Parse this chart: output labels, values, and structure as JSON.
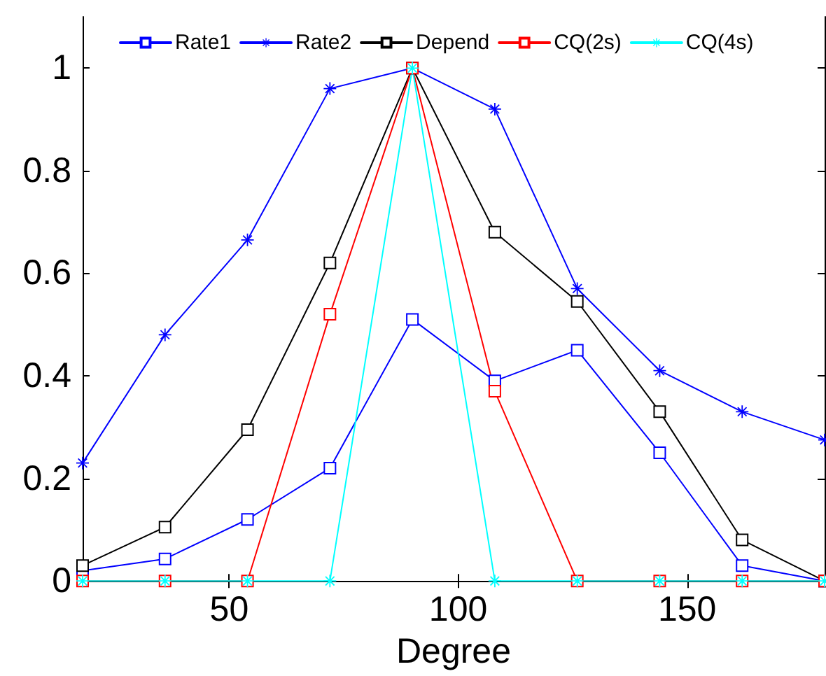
{
  "chart_data": {
    "type": "line",
    "xlabel": "Degree",
    "x": [
      18,
      36,
      54,
      72,
      90,
      108,
      126,
      144,
      162,
      180
    ],
    "series": [
      {
        "name": "Rate1",
        "color": "#0000ff",
        "marker": "square",
        "values": [
          0.02,
          0.043,
          0.12,
          0.22,
          0.51,
          0.39,
          0.45,
          0.25,
          0.03,
          0
        ]
      },
      {
        "name": "Rate2",
        "color": "#0000ff",
        "marker": "star",
        "values": [
          0.23,
          0.48,
          0.665,
          0.96,
          1,
          0.92,
          0.57,
          0.41,
          0.33,
          0.275
        ]
      },
      {
        "name": "Depend",
        "color": "#000000",
        "marker": "square",
        "values": [
          0.03,
          0.105,
          0.295,
          0.62,
          1,
          0.68,
          0.545,
          0.33,
          0.08,
          0
        ]
      },
      {
        "name": "CQ(2s)",
        "color": "#ff0000",
        "marker": "square",
        "values": [
          0,
          0,
          0,
          0.52,
          1,
          0.37,
          0,
          0,
          0,
          0
        ]
      },
      {
        "name": "CQ(4s)",
        "color": "#00ffff",
        "marker": "star",
        "values": [
          0,
          0,
          0,
          0,
          1,
          0,
          0,
          0,
          0,
          0
        ]
      }
    ],
    "xlim": [
      18,
      180
    ],
    "xticks": [
      50,
      100,
      150
    ],
    "ylim": [
      0,
      1.1
    ],
    "yticks": [
      0,
      0.2,
      0.4,
      0.6,
      0.8,
      1
    ],
    "grid": false,
    "legend": "top",
    "line_style": "solid"
  }
}
